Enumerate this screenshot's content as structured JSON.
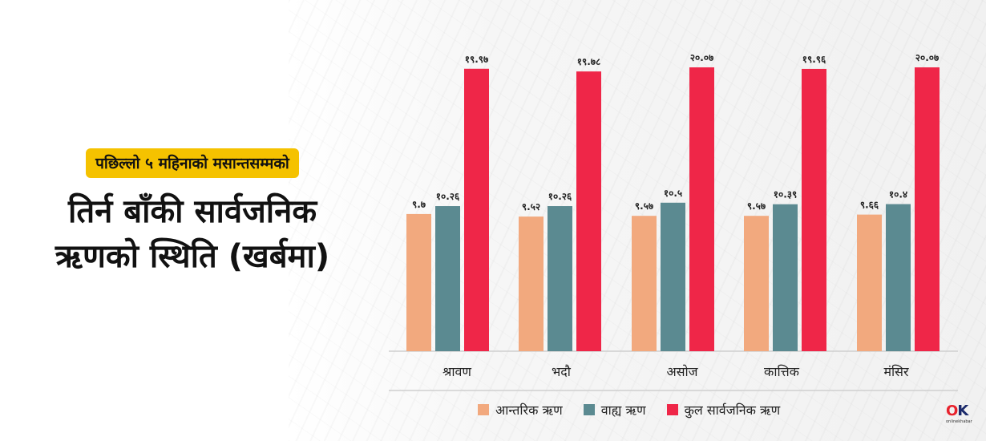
{
  "title": {
    "subtitle": "पछिल्लो ५ महिनाको मसान्तसम्मको",
    "line1": "तिर्न बाँकी सार्वजनिक",
    "line2": "ऋणको स्थिति (खर्बमा)"
  },
  "colors": {
    "internal": "#f2a97e",
    "external": "#5b8a91",
    "total": "#ef2648",
    "subtitle_bg": "#f5c200"
  },
  "chart_data": {
    "type": "bar",
    "categories": [
      "श्रावण",
      "भदौ",
      "असोज",
      "कात्तिक",
      "मंसिर"
    ],
    "series": [
      {
        "name": "आन्तरिक ऋण",
        "values": [
          9.7,
          9.52,
          9.57,
          9.57,
          9.66
        ],
        "labels": [
          "९.७",
          "९.५२",
          "९.५७",
          "९.५७",
          "९.६६"
        ],
        "color": "#f2a97e"
      },
      {
        "name": "वाह्य ऋण",
        "values": [
          10.26,
          10.26,
          10.5,
          10.39,
          10.4
        ],
        "labels": [
          "१०.२६",
          "१०.२६",
          "१०.५",
          "१०.३९",
          "१०.४"
        ],
        "color": "#5b8a91"
      },
      {
        "name": "कुल सार्वजनिक ऋण",
        "values": [
          19.97,
          19.78,
          20.07,
          19.96,
          20.07
        ],
        "labels": [
          "१९.९७",
          "१९.७८",
          "२०.०७",
          "१९.९६",
          "२०.०७"
        ],
        "color": "#ef2648"
      }
    ],
    "ylim": [
      0,
      20.07
    ],
    "grid": false,
    "legend_position": "bottom"
  },
  "logo": {
    "mark_o": "O",
    "mark_k": "K",
    "sub": "onlinekhabar"
  }
}
